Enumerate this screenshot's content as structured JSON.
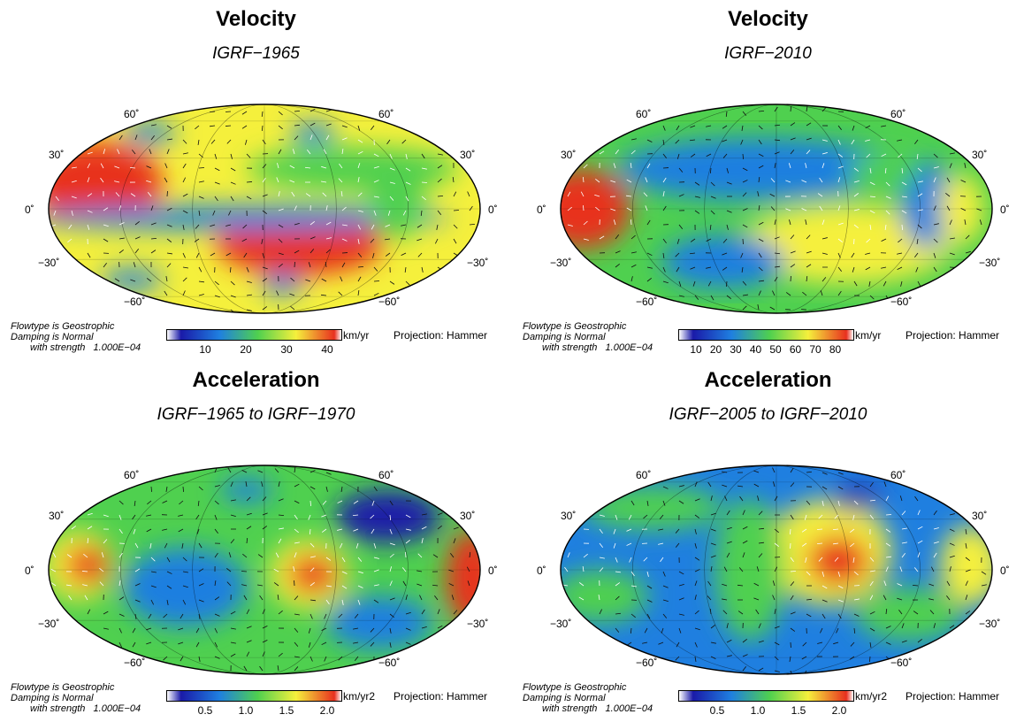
{
  "colors": {
    "low": "#1a1aa8",
    "mid_low": "#1f7fe0",
    "mid": "#4fd04f",
    "mid_high": "#f5f03c",
    "high": "#e8301f",
    "max": "#c0001a"
  },
  "latitude_labels": [
    "60˚",
    "30˚",
    "0˚",
    "−30˚",
    "−60˚"
  ],
  "panels": [
    {
      "title": "Velocity",
      "subtitle": "IGRF−1965",
      "info": [
        "Flowtype is Geostrophic",
        "Damping is Normal",
        "with strength   1.000E−04"
      ],
      "unit": "km/yr",
      "ticks": [
        "10",
        "20",
        "30",
        "40"
      ],
      "projection": "Projection: Hammer"
    },
    {
      "title": "Velocity",
      "subtitle": "IGRF−2010",
      "info": [
        "Flowtype is Geostrophic",
        "Damping is Normal",
        "with strength   1.000E−04"
      ],
      "unit": "km/yr",
      "ticks": [
        "10",
        "20",
        "30",
        "40",
        "50",
        "60",
        "70",
        "80"
      ],
      "projection": "Projection: Hammer"
    },
    {
      "title": "Acceleration",
      "subtitle": "IGRF−1965 to IGRF−1970",
      "info": [
        "Flowtype is Geostrophic",
        "Damping is Normal",
        "with strength   1.000E−04"
      ],
      "unit": "km/yr2",
      "ticks": [
        "0.5",
        "1.0",
        "1.5",
        "2.0"
      ],
      "projection": "Projection: Hammer"
    },
    {
      "title": "Acceleration",
      "subtitle": "IGRF−2005 to IGRF−2010",
      "info": [
        "Flowtype is Geostrophic",
        "Damping is Normal",
        "with strength   1.000E−04"
      ],
      "unit": "km/yr2",
      "ticks": [
        "0.5",
        "1.0",
        "1.5",
        "2.0"
      ],
      "projection": "Projection: Hammer"
    }
  ]
}
